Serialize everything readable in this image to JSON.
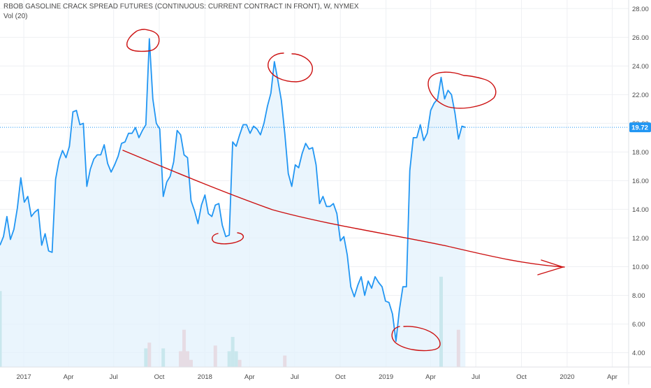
{
  "header": {
    "title": "RBOB GASOLINE CRACK SPREAD FUTURES (CONTINUOUS: CURRENT CONTRACT IN FRONT), W, NYMEX",
    "volume_label": "Vol (20)"
  },
  "chart_data": {
    "type": "line",
    "title": "RBOB GASOLINE CRACK SPREAD FUTURES (CONTINUOUS: CURRENT CONTRACT IN FRONT), W, NYMEX",
    "xlabel": "",
    "ylabel": "",
    "ylim": [
      3.0,
      28.6
    ],
    "xlim": [
      "2016-11-14",
      "2020-05-04"
    ],
    "grid": true,
    "y_ticks": [
      4,
      6,
      8,
      10,
      12,
      14,
      16,
      18,
      20,
      22,
      24,
      26,
      28
    ],
    "y_tick_labels": [
      "4.00",
      "6.00",
      "8.00",
      "10.00",
      "12.00",
      "14.00",
      "16.00",
      "18.00",
      "20.00",
      "22.00",
      "24.00",
      "26.00",
      "28.00"
    ],
    "x_ticks": [
      {
        "date": "2017-01-01",
        "label": "2017"
      },
      {
        "date": "2017-04-01",
        "label": "Apr"
      },
      {
        "date": "2017-07-01",
        "label": "Jul"
      },
      {
        "date": "2017-10-01",
        "label": "Oct"
      },
      {
        "date": "2018-01-01",
        "label": "2018"
      },
      {
        "date": "2018-04-01",
        "label": "Apr"
      },
      {
        "date": "2018-07-01",
        "label": "Jul"
      },
      {
        "date": "2018-10-01",
        "label": "Oct"
      },
      {
        "date": "2019-01-01",
        "label": "2019"
      },
      {
        "date": "2019-04-01",
        "label": "Apr"
      },
      {
        "date": "2019-07-01",
        "label": "Jul"
      },
      {
        "date": "2019-10-01",
        "label": "Oct"
      },
      {
        "date": "2020-01-01",
        "label": "2020"
      },
      {
        "date": "2020-04-01",
        "label": "Apr"
      }
    ],
    "last_value": 19.72,
    "last_value_label": "19.72",
    "colors": {
      "line": "#2196f3",
      "area": "#e3f1fc",
      "last_price_bg": "#2196f3",
      "volume_up": "#7cc6c0",
      "volume_down": "#ef9a9a",
      "annotation": "#cc1010",
      "grid": "#eef0f3",
      "axis_text": "#4a4a4a"
    },
    "series": [
      {
        "values": [
          [
            "2016-11-14",
            11.5
          ],
          [
            "2016-11-21",
            12.1
          ],
          [
            "2016-11-28",
            13.5
          ],
          [
            "2016-12-05",
            11.9
          ],
          [
            "2016-12-12",
            12.6
          ],
          [
            "2016-12-19",
            14.1
          ],
          [
            "2016-12-26",
            16.2
          ],
          [
            "2017-01-02",
            14.5
          ],
          [
            "2017-01-09",
            14.9
          ],
          [
            "2017-01-16",
            13.5
          ],
          [
            "2017-01-23",
            13.8
          ],
          [
            "2017-01-30",
            14.0
          ],
          [
            "2017-02-06",
            11.5
          ],
          [
            "2017-02-13",
            12.3
          ],
          [
            "2017-02-20",
            11.1
          ],
          [
            "2017-02-27",
            11.0
          ],
          [
            "2017-03-06",
            16.1
          ],
          [
            "2017-03-13",
            17.4
          ],
          [
            "2017-03-20",
            18.1
          ],
          [
            "2017-03-27",
            17.6
          ],
          [
            "2017-04-03",
            18.4
          ],
          [
            "2017-04-10",
            20.8
          ],
          [
            "2017-04-17",
            20.9
          ],
          [
            "2017-04-24",
            19.9
          ],
          [
            "2017-05-01",
            20.0
          ],
          [
            "2017-05-08",
            15.6
          ],
          [
            "2017-05-15",
            16.8
          ],
          [
            "2017-05-22",
            17.5
          ],
          [
            "2017-05-29",
            17.8
          ],
          [
            "2017-06-05",
            17.8
          ],
          [
            "2017-06-12",
            18.5
          ],
          [
            "2017-06-19",
            17.2
          ],
          [
            "2017-06-26",
            16.6
          ],
          [
            "2017-07-03",
            17.1
          ],
          [
            "2017-07-10",
            17.7
          ],
          [
            "2017-07-17",
            18.6
          ],
          [
            "2017-07-24",
            18.7
          ],
          [
            "2017-07-31",
            19.3
          ],
          [
            "2017-08-07",
            19.3
          ],
          [
            "2017-08-14",
            19.7
          ],
          [
            "2017-08-21",
            19.0
          ],
          [
            "2017-08-28",
            19.5
          ],
          [
            "2017-09-04",
            19.9
          ],
          [
            "2017-09-11",
            25.9
          ],
          [
            "2017-09-18",
            21.7
          ],
          [
            "2017-09-25",
            20.0
          ],
          [
            "2017-10-02",
            19.6
          ],
          [
            "2017-10-09",
            14.9
          ],
          [
            "2017-10-16",
            15.9
          ],
          [
            "2017-10-23",
            16.3
          ],
          [
            "2017-10-30",
            17.3
          ],
          [
            "2017-11-06",
            19.5
          ],
          [
            "2017-11-13",
            19.2
          ],
          [
            "2017-11-20",
            17.8
          ],
          [
            "2017-11-27",
            17.6
          ],
          [
            "2017-12-04",
            14.6
          ],
          [
            "2017-12-11",
            13.9
          ],
          [
            "2017-12-18",
            13.0
          ],
          [
            "2017-12-25",
            14.3
          ],
          [
            "2018-01-01",
            15.0
          ],
          [
            "2018-01-08",
            13.7
          ],
          [
            "2018-01-15",
            13.5
          ],
          [
            "2018-01-22",
            14.3
          ],
          [
            "2018-01-29",
            14.4
          ],
          [
            "2018-02-05",
            12.9
          ],
          [
            "2018-02-12",
            12.1
          ],
          [
            "2018-02-19",
            12.2
          ],
          [
            "2018-02-26",
            18.7
          ],
          [
            "2018-03-05",
            18.4
          ],
          [
            "2018-03-12",
            19.2
          ],
          [
            "2018-03-19",
            19.9
          ],
          [
            "2018-03-26",
            19.9
          ],
          [
            "2018-04-02",
            19.3
          ],
          [
            "2018-04-09",
            19.8
          ],
          [
            "2018-04-16",
            19.6
          ],
          [
            "2018-04-23",
            19.2
          ],
          [
            "2018-04-30",
            20.0
          ],
          [
            "2018-05-07",
            21.2
          ],
          [
            "2018-05-14",
            22.1
          ],
          [
            "2018-05-21",
            24.3
          ],
          [
            "2018-05-28",
            23.0
          ],
          [
            "2018-06-04",
            21.6
          ],
          [
            "2018-06-11",
            19.3
          ],
          [
            "2018-06-18",
            16.5
          ],
          [
            "2018-06-25",
            15.6
          ],
          [
            "2018-07-02",
            17.1
          ],
          [
            "2018-07-09",
            16.9
          ],
          [
            "2018-07-16",
            17.9
          ],
          [
            "2018-07-23",
            18.6
          ],
          [
            "2018-07-30",
            18.2
          ],
          [
            "2018-08-06",
            18.3
          ],
          [
            "2018-08-13",
            17.1
          ],
          [
            "2018-08-20",
            14.4
          ],
          [
            "2018-08-27",
            14.9
          ],
          [
            "2018-09-03",
            14.2
          ],
          [
            "2018-09-10",
            14.2
          ],
          [
            "2018-09-17",
            14.4
          ],
          [
            "2018-09-24",
            13.7
          ],
          [
            "2018-10-01",
            11.8
          ],
          [
            "2018-10-08",
            12.1
          ],
          [
            "2018-10-15",
            10.8
          ],
          [
            "2018-10-22",
            8.6
          ],
          [
            "2018-10-29",
            7.9
          ],
          [
            "2018-11-05",
            8.7
          ],
          [
            "2018-11-12",
            9.3
          ],
          [
            "2018-11-19",
            8.0
          ],
          [
            "2018-11-26",
            9.0
          ],
          [
            "2018-12-03",
            8.5
          ],
          [
            "2018-12-10",
            9.3
          ],
          [
            "2018-12-17",
            8.9
          ],
          [
            "2018-12-24",
            8.6
          ],
          [
            "2018-12-31",
            7.6
          ],
          [
            "2019-01-07",
            7.5
          ],
          [
            "2019-01-14",
            6.7
          ],
          [
            "2019-01-21",
            4.8
          ],
          [
            "2019-01-28",
            7.0
          ],
          [
            "2019-02-04",
            8.6
          ],
          [
            "2019-02-11",
            8.6
          ],
          [
            "2019-02-18",
            16.7
          ],
          [
            "2019-02-25",
            19.0
          ],
          [
            "2019-03-04",
            19.0
          ],
          [
            "2019-03-11",
            19.9
          ],
          [
            "2019-03-18",
            18.8
          ],
          [
            "2019-03-25",
            19.3
          ],
          [
            "2019-04-01",
            20.9
          ],
          [
            "2019-04-08",
            21.4
          ],
          [
            "2019-04-15",
            21.7
          ],
          [
            "2019-04-22",
            23.2
          ],
          [
            "2019-04-29",
            21.7
          ],
          [
            "2019-05-06",
            22.3
          ],
          [
            "2019-05-13",
            22.0
          ],
          [
            "2019-05-20",
            20.7
          ],
          [
            "2019-05-27",
            18.9
          ],
          [
            "2019-06-03",
            19.8
          ],
          [
            "2019-06-10",
            19.72
          ]
        ]
      }
    ],
    "volume": [
      {
        "date": "2016-11-14",
        "value": 8.3,
        "dir": "up"
      },
      {
        "date": "2017-09-04",
        "value": 4.3,
        "dir": "up"
      },
      {
        "date": "2017-09-11",
        "value": 4.7,
        "dir": "down"
      },
      {
        "date": "2017-10-09",
        "value": 4.3,
        "dir": "up"
      },
      {
        "date": "2017-11-13",
        "value": 4.1,
        "dir": "down"
      },
      {
        "date": "2017-11-20",
        "value": 5.6,
        "dir": "down"
      },
      {
        "date": "2017-11-27",
        "value": 4.1,
        "dir": "down"
      },
      {
        "date": "2017-12-04",
        "value": 3.5,
        "dir": "down"
      },
      {
        "date": "2018-01-22",
        "value": 4.5,
        "dir": "down"
      },
      {
        "date": "2018-02-19",
        "value": 4.1,
        "dir": "up"
      },
      {
        "date": "2018-02-26",
        "value": 5.1,
        "dir": "up"
      },
      {
        "date": "2018-03-05",
        "value": 4.1,
        "dir": "up"
      },
      {
        "date": "2018-03-12",
        "value": 3.5,
        "dir": "down"
      },
      {
        "date": "2018-06-11",
        "value": 3.8,
        "dir": "down"
      },
      {
        "date": "2019-04-22",
        "value": 9.3,
        "dir": "up"
      },
      {
        "date": "2019-05-27",
        "value": 5.6,
        "dir": "down"
      }
    ]
  }
}
